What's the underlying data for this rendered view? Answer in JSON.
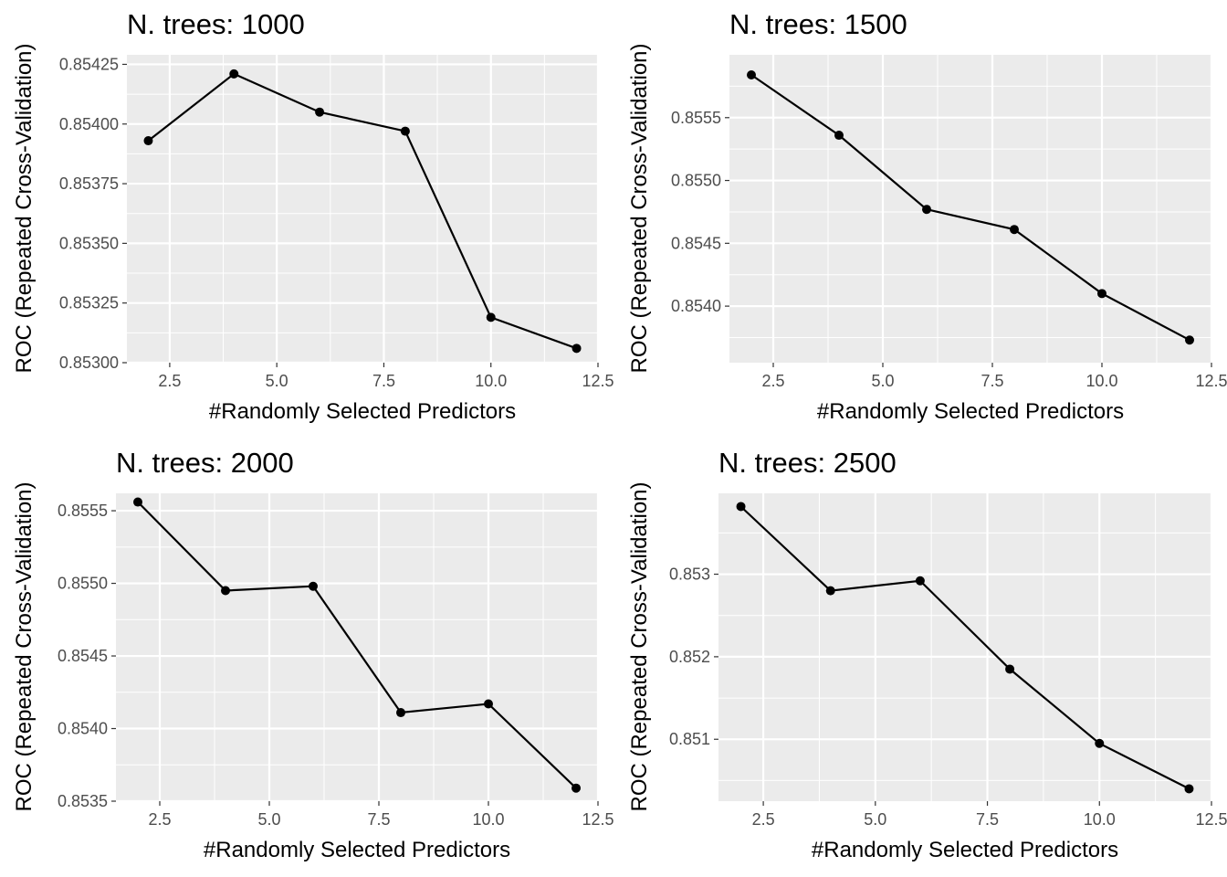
{
  "chart_data": [
    {
      "type": "line",
      "title": "N. trees: 1000",
      "xlabel": "#Randomly Selected Predictors",
      "ylabel": "ROC (Repeated Cross-Validation)",
      "x": [
        2,
        4,
        6,
        8,
        10,
        12
      ],
      "y": [
        0.85393,
        0.85421,
        0.85405,
        0.85397,
        0.85319,
        0.85306
      ],
      "xlim": [
        1.5,
        12.5
      ],
      "ylim": [
        0.853,
        0.85429
      ],
      "xticks": [
        2.5,
        5.0,
        7.5,
        10.0,
        12.5
      ],
      "xtick_labels": [
        "2.5",
        "5.0",
        "7.5",
        "10.0",
        "12.5"
      ],
      "yticks": [
        0.853,
        0.85325,
        0.8535,
        0.85375,
        0.854,
        0.85425
      ],
      "ytick_labels": [
        "0.85300",
        "0.85325",
        "0.85350",
        "0.85375",
        "0.85400",
        "0.85425"
      ],
      "grid": true,
      "line_color": "#000000",
      "panel_color": "#ebebeb"
    },
    {
      "type": "line",
      "title": "N. trees: 1500",
      "xlabel": "#Randomly Selected Predictors",
      "ylabel": "ROC (Repeated Cross-Validation)",
      "x": [
        2,
        4,
        6,
        8,
        10,
        12
      ],
      "y": [
        0.85584,
        0.85536,
        0.85477,
        0.85461,
        0.8541,
        0.85373
      ],
      "xlim": [
        1.5,
        12.5
      ],
      "ylim": [
        0.85355,
        0.856
      ],
      "xticks": [
        2.5,
        5.0,
        7.5,
        10.0,
        12.5
      ],
      "xtick_labels": [
        "2.5",
        "5.0",
        "7.5",
        "10.0",
        "12.5"
      ],
      "yticks": [
        0.854,
        0.8545,
        0.855,
        0.8555
      ],
      "ytick_labels": [
        "0.8540",
        "0.8545",
        "0.8550",
        "0.8555"
      ],
      "grid": true,
      "line_color": "#000000",
      "panel_color": "#ebebeb"
    },
    {
      "type": "line",
      "title": "N. trees: 2000",
      "xlabel": "#Randomly Selected Predictors",
      "ylabel": "ROC (Repeated Cross-Validation)",
      "x": [
        2,
        4,
        6,
        8,
        10,
        12
      ],
      "y": [
        0.85556,
        0.85495,
        0.85498,
        0.85411,
        0.85417,
        0.85359
      ],
      "xlim": [
        1.5,
        12.5
      ],
      "ylim": [
        0.8535,
        0.85562
      ],
      "xticks": [
        2.5,
        5.0,
        7.5,
        10.0,
        12.5
      ],
      "xtick_labels": [
        "2.5",
        "5.0",
        "7.5",
        "10.0",
        "12.5"
      ],
      "yticks": [
        0.8535,
        0.854,
        0.8545,
        0.855,
        0.8555
      ],
      "ytick_labels": [
        "0.8535",
        "0.8540",
        "0.8545",
        "0.8550",
        "0.8555"
      ],
      "grid": true,
      "line_color": "#000000",
      "panel_color": "#ebebeb"
    },
    {
      "type": "line",
      "title": "N. trees: 2500",
      "xlabel": "#Randomly Selected Predictors",
      "ylabel": "ROC (Repeated Cross-Validation)",
      "x": [
        2,
        4,
        6,
        8,
        10,
        12
      ],
      "y": [
        0.85382,
        0.8528,
        0.85292,
        0.85185,
        0.85095,
        0.8504
      ],
      "xlim": [
        1.5,
        12.5
      ],
      "ylim": [
        0.85025,
        0.85398
      ],
      "xticks": [
        2.5,
        5.0,
        7.5,
        10.0,
        12.5
      ],
      "xtick_labels": [
        "2.5",
        "5.0",
        "7.5",
        "10.0",
        "12.5"
      ],
      "yticks": [
        0.851,
        0.852,
        0.853
      ],
      "ytick_labels": [
        "0.851",
        "0.852",
        "0.853"
      ],
      "grid": true,
      "line_color": "#000000",
      "panel_color": "#ebebeb"
    }
  ]
}
